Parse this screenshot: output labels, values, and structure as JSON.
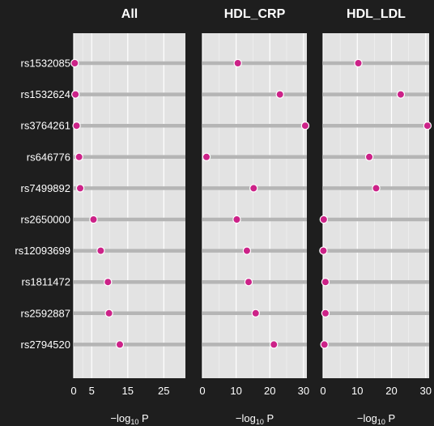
{
  "chart_data": {
    "type": "scatter",
    "style": "dot-plot with faceted panels",
    "colors": {
      "background": "#1e1e1e",
      "panel": "#e3e3e3",
      "grid": "#ffffff",
      "row_line": "#b5b5b5",
      "point": "#cc2288",
      "text": "#ffffff"
    },
    "y_categories": [
      "rs1532085",
      "rs1532624",
      "rs3764261",
      "rs646776",
      "rs7499892",
      "rs2650000",
      "rs12093699",
      "rs1811472",
      "rs2592887",
      "rs2794520"
    ],
    "xlabel": {
      "prefix": "−log",
      "sub": "10",
      "suffix": " P"
    },
    "panels": [
      {
        "title": "All",
        "xlim": [
          0,
          31
        ],
        "ticks": [
          0,
          5,
          15,
          25
        ],
        "values": [
          0.3,
          0.5,
          0.8,
          1.5,
          1.8,
          5.5,
          7.5,
          9.5,
          9.8,
          12.8
        ]
      },
      {
        "title": "HDL_CRP",
        "xlim": [
          0,
          31
        ],
        "ticks": [
          0,
          10,
          20,
          30
        ],
        "values": [
          10.5,
          23.0,
          30.5,
          1.2,
          15.2,
          10.2,
          13.2,
          13.7,
          15.8,
          21.2
        ]
      },
      {
        "title": "HDL_LDL",
        "xlim": [
          0,
          31
        ],
        "ticks": [
          0,
          10,
          20,
          30
        ],
        "values": [
          10.3,
          22.7,
          30.5,
          13.5,
          15.5,
          0.2,
          0.1,
          0.7,
          0.7,
          0.4
        ]
      }
    ]
  }
}
